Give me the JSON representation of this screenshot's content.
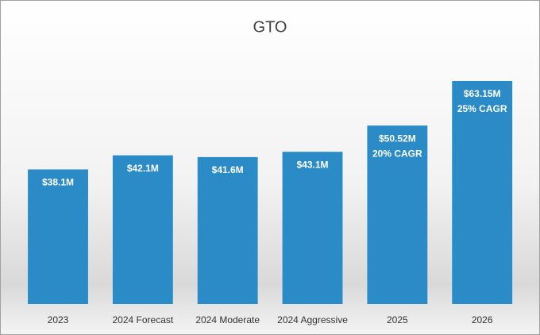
{
  "chart_data": {
    "type": "bar",
    "title": "GTO",
    "categories": [
      "2023",
      "2024 Forecast",
      "2024 Moderate",
      "2024 Aggressive",
      "2025",
      "2026"
    ],
    "values": [
      38.1,
      42.1,
      41.6,
      43.1,
      50.52,
      63.15
    ],
    "value_labels": [
      "$38.1M",
      "$42.1M",
      "$41.6M",
      "$43.1M",
      "$50.52M",
      "$63.15M"
    ],
    "annotations": [
      {
        "category": "2025",
        "text": "20% CAGR"
      },
      {
        "category": "2026",
        "text": "25% CAGR"
      }
    ],
    "color": "#2b8bc6",
    "ylim": [
      0,
      70
    ]
  }
}
